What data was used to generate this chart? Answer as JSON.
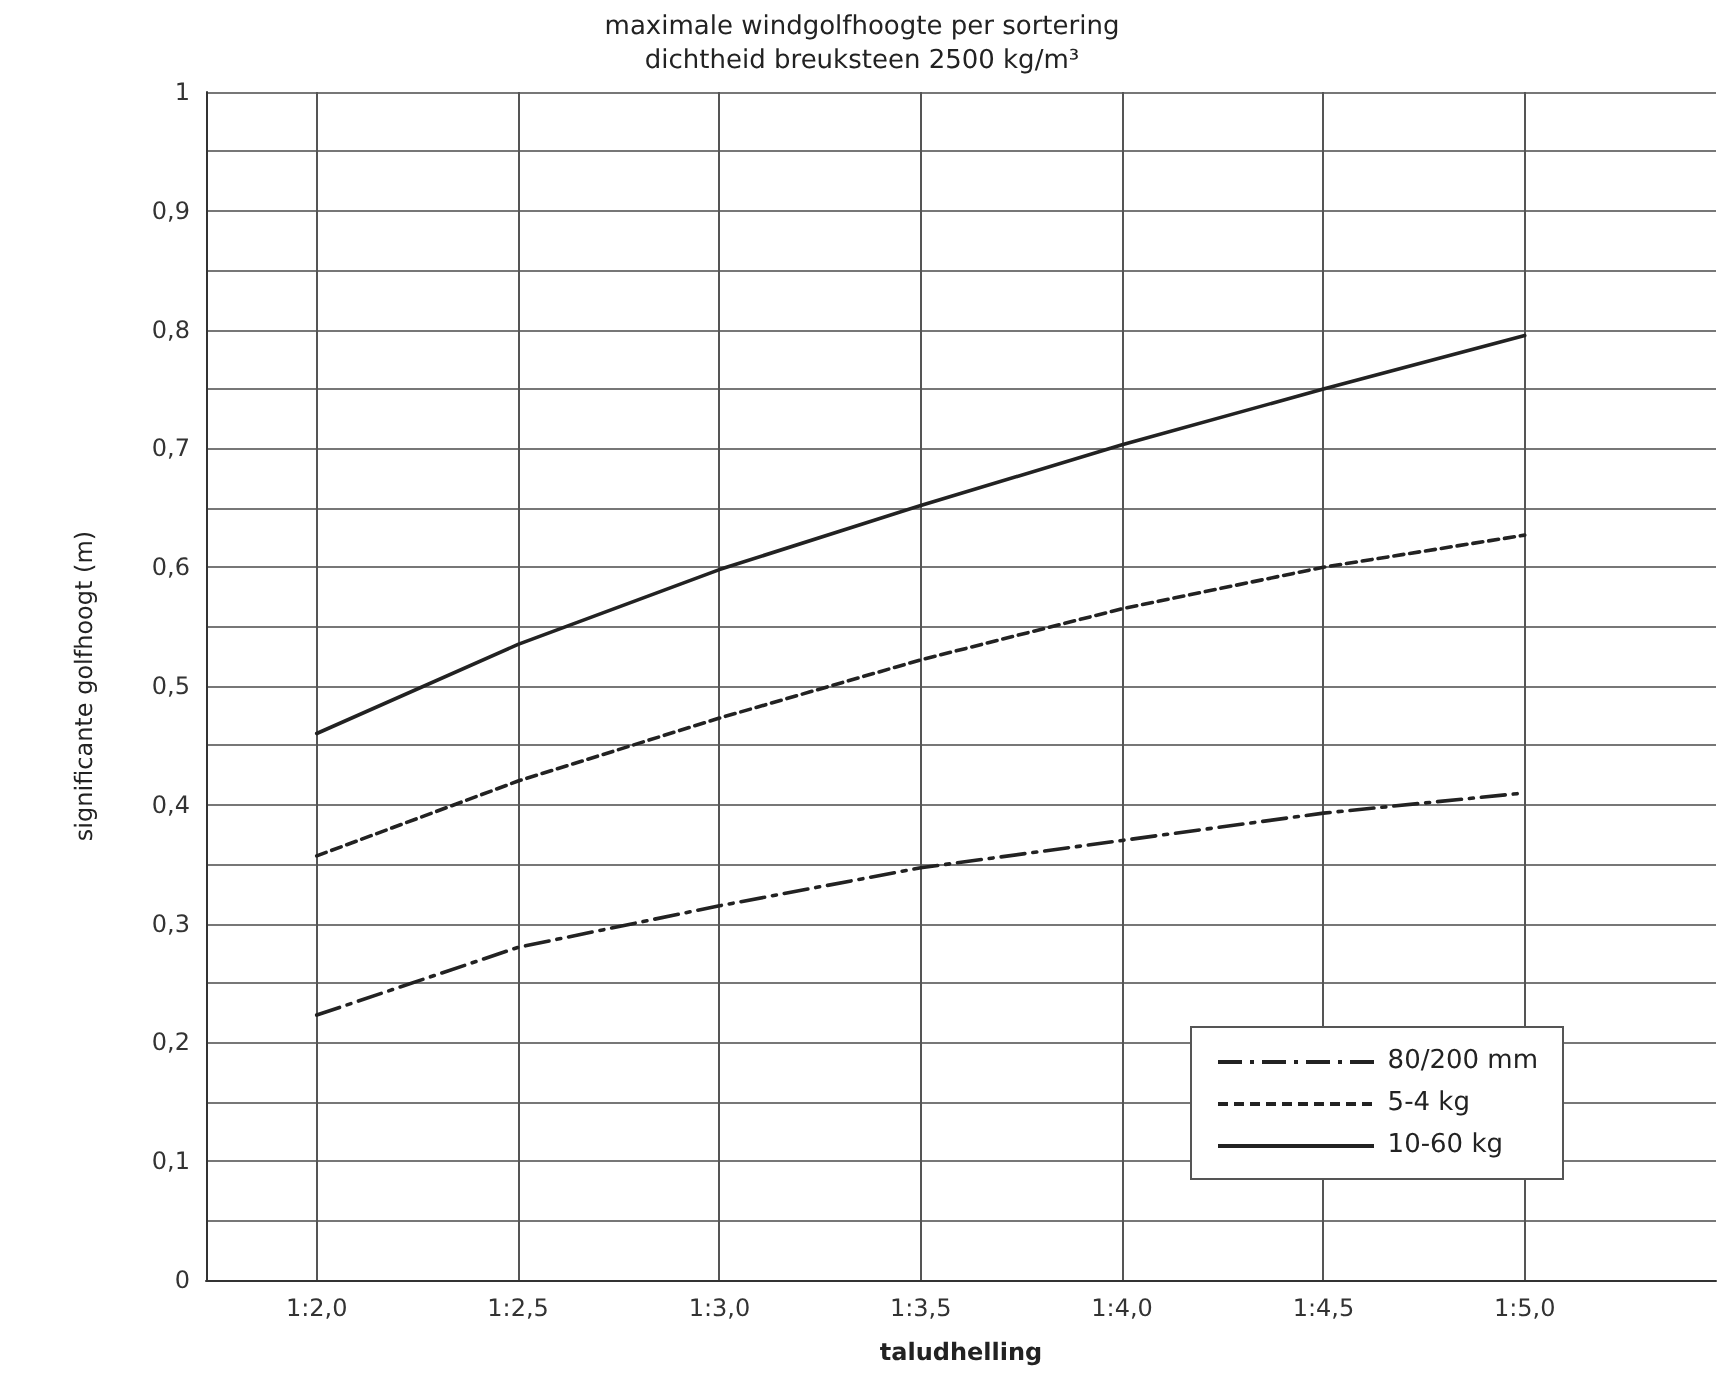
{
  "chart_data": {
    "type": "line",
    "title": "maximale windgolfhoogte per sortering",
    "subtitle": "dichtheid breuksteen 2500 kg/m³",
    "xlabel": "taludhelling",
    "ylabel": "significante golfhoogt (m)",
    "categories": [
      "1:2,0",
      "1:2,5",
      "1:3,0",
      "1:3,5",
      "1:4,0",
      "1:4,5",
      "1:5,0"
    ],
    "series": [
      {
        "name": "80/200 mm",
        "color": "#222222",
        "line_style": "dashdot",
        "values": [
          0.223,
          0.28,
          0.315,
          0.347,
          0.37,
          0.393,
          0.41
        ]
      },
      {
        "name": "5-4 kg",
        "color": "#222222",
        "line_style": "dashed",
        "values": [
          0.357,
          0.42,
          0.473,
          0.522,
          0.565,
          0.6,
          0.627
        ]
      },
      {
        "name": "10-60 kg",
        "color": "#222222",
        "line_style": "solid",
        "values": [
          0.46,
          0.535,
          0.598,
          0.652,
          0.703,
          0.75,
          0.795
        ]
      }
    ],
    "ylim": [
      0,
      1
    ],
    "yticks": [
      0,
      {
        "value": 0.1,
        "label": "0,1"
      },
      {
        "value": 0.2,
        "label": "0,2"
      },
      {
        "value": 0.3,
        "label": "0,3"
      },
      {
        "value": 0.4,
        "label": "0,4"
      },
      {
        "value": 0.5,
        "label": "0,5"
      },
      {
        "value": 0.6,
        "label": "0,6"
      },
      {
        "value": 0.7,
        "label": "0,7"
      },
      {
        "value": 0.8,
        "label": "0,8"
      },
      {
        "value": 0.9,
        "label": "0,9"
      },
      1
    ],
    "grid": true,
    "legend": "bottom right",
    "marker": "none"
  }
}
